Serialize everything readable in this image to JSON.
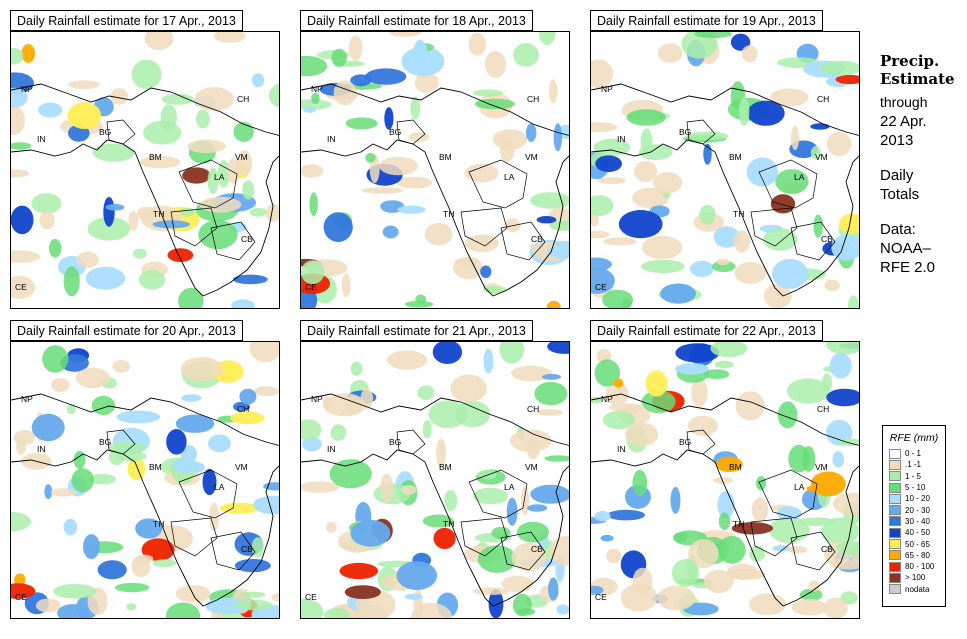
{
  "panels": [
    {
      "title": "Daily Rainfall estimate for  17 Apr., 2013"
    },
    {
      "title": "Daily Rainfall estimate for  18 Apr., 2013"
    },
    {
      "title": "Daily Rainfall estimate for  19 Apr., 2013"
    },
    {
      "title": "Daily Rainfall estimate for  20 Apr., 2013"
    },
    {
      "title": "Daily Rainfall estimate for  21 Apr., 2013"
    },
    {
      "title": "Daily Rainfall estimate for  22 Apr., 2013"
    }
  ],
  "country_labels": [
    "NP",
    "CH",
    "IN",
    "BG",
    "BM",
    "VM",
    "LA",
    "TH",
    "CB",
    "CE"
  ],
  "side": {
    "heading_line1": "Precip.",
    "heading_line2": "Estimate",
    "through": "through",
    "date_line1": "22 Apr.",
    "date_line2": "2013",
    "daily_line1": "Daily",
    "daily_line2": "Totals",
    "data_line1": "Data:",
    "data_line2": "NOAA–",
    "data_line3": "RFE 2.0"
  },
  "legend": {
    "title": "RFE (mm)",
    "items": [
      {
        "label": "0 - 1",
        "color": "#ffffff"
      },
      {
        "label": ".1 -1",
        "color": "#f0dcbd"
      },
      {
        "label": "1 - 5",
        "color": "#aaeeaa"
      },
      {
        "label": "5 - 10",
        "color": "#66dd77"
      },
      {
        "label": "10 - 20",
        "color": "#aaddff"
      },
      {
        "label": "20 - 30",
        "color": "#66aaee"
      },
      {
        "label": "30 - 40",
        "color": "#3377dd"
      },
      {
        "label": "40 - 50",
        "color": "#1144cc"
      },
      {
        "label": "50 - 65",
        "color": "#ffee55"
      },
      {
        "label": "65 - 80",
        "color": "#ffaa00"
      },
      {
        "label": "80 - 100",
        "color": "#ee2200"
      },
      {
        "label": "> 100",
        "color": "#883322"
      },
      {
        "label": "nodata",
        "color": "#cccccc"
      }
    ]
  }
}
